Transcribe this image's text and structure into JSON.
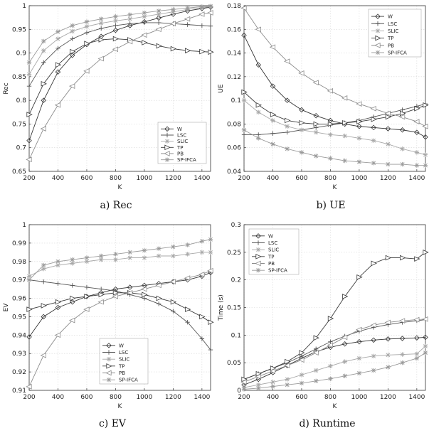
{
  "figure": {
    "series_names": [
      "W",
      "LSC",
      "SLIC",
      "TP",
      "PB",
      "SP-IFCA"
    ],
    "series_colors": [
      "#333333",
      "#555555",
      "#a8a8a8",
      "#3a3a3a",
      "#8c8c8c",
      "#9a9a9a"
    ],
    "series_markers": [
      "diamond",
      "plus",
      "star",
      "tri-right",
      "tri-left",
      "star"
    ]
  },
  "chart_data": [
    {
      "id": "rec",
      "type": "line",
      "caption": "a) Rec",
      "xlabel": "K",
      "ylabel": "Rec",
      "xlim": [
        200,
        1460
      ],
      "ylim": [
        0.65,
        1.0
      ],
      "xticks": [
        200,
        400,
        600,
        800,
        1000,
        1200,
        1400
      ],
      "xtick_labels": [
        "200",
        "400",
        "600",
        "800",
        "1000",
        "1200",
        "1400"
      ],
      "yticks": [
        0.65,
        0.7,
        0.75,
        0.8,
        0.85,
        0.9,
        0.95,
        1.0
      ],
      "ytick_labels": [
        "0.65",
        "0.7",
        "0.75",
        "0.8",
        "0.85",
        "0.9",
        "0.95",
        "1"
      ],
      "legend": "bottom-right",
      "x": [
        200,
        300,
        400,
        500,
        600,
        700,
        800,
        900,
        1000,
        1100,
        1200,
        1300,
        1400,
        1460
      ],
      "series": [
        {
          "name": "W",
          "values": [
            0.715,
            0.8,
            0.86,
            0.895,
            0.918,
            0.935,
            0.948,
            0.958,
            0.966,
            0.974,
            0.982,
            0.989,
            0.994,
            0.997
          ]
        },
        {
          "name": "LSC",
          "values": [
            0.83,
            0.88,
            0.91,
            0.93,
            0.943,
            0.952,
            0.958,
            0.962,
            0.964,
            0.964,
            0.962,
            0.96,
            0.958,
            0.957
          ]
        },
        {
          "name": "SLIC",
          "values": [
            0.855,
            0.905,
            0.93,
            0.946,
            0.956,
            0.963,
            0.968,
            0.972,
            0.977,
            0.982,
            0.987,
            0.992,
            0.996,
            0.998
          ]
        },
        {
          "name": "TP",
          "values": [
            0.77,
            0.835,
            0.875,
            0.903,
            0.92,
            0.928,
            0.93,
            0.928,
            0.922,
            0.915,
            0.909,
            0.905,
            0.903,
            0.902
          ]
        },
        {
          "name": "PB",
          "values": [
            0.675,
            0.74,
            0.79,
            0.83,
            0.862,
            0.888,
            0.908,
            0.924,
            0.938,
            0.95,
            0.962,
            0.972,
            0.982,
            0.985
          ]
        },
        {
          "name": "SP-IFCA",
          "values": [
            0.88,
            0.925,
            0.945,
            0.958,
            0.966,
            0.972,
            0.977,
            0.981,
            0.985,
            0.989,
            0.992,
            0.995,
            0.998,
            0.999
          ]
        }
      ]
    },
    {
      "id": "ue",
      "type": "line",
      "caption": "b) UE",
      "xlabel": "K",
      "ylabel": "UE",
      "xlim": [
        200,
        1460
      ],
      "ylim": [
        0.04,
        0.18
      ],
      "xticks": [
        200,
        400,
        600,
        800,
        1000,
        1200,
        1400
      ],
      "xtick_labels": [
        "200",
        "400",
        "600",
        "800",
        "1000",
        "1200",
        "1400"
      ],
      "yticks": [
        0.04,
        0.06,
        0.08,
        0.1,
        0.12,
        0.14,
        0.16,
        0.18
      ],
      "ytick_labels": [
        "0.04",
        "0.06",
        "0.08",
        "0.1",
        "0.12",
        "0.14",
        "0.16",
        "0.18"
      ],
      "legend": "top-right",
      "x": [
        200,
        300,
        400,
        500,
        600,
        700,
        800,
        900,
        1000,
        1100,
        1200,
        1300,
        1400,
        1460
      ],
      "series": [
        {
          "name": "W",
          "values": [
            0.155,
            0.13,
            0.112,
            0.1,
            0.092,
            0.087,
            0.083,
            0.08,
            0.078,
            0.077,
            0.076,
            0.075,
            0.073,
            0.069
          ]
        },
        {
          "name": "LSC",
          "values": [
            0.071,
            0.071,
            0.072,
            0.073,
            0.075,
            0.077,
            0.079,
            0.081,
            0.083,
            0.086,
            0.089,
            0.092,
            0.095,
            0.097
          ]
        },
        {
          "name": "SLIC",
          "values": [
            0.1,
            0.09,
            0.083,
            0.078,
            0.075,
            0.073,
            0.071,
            0.07,
            0.068,
            0.066,
            0.063,
            0.059,
            0.056,
            0.054
          ]
        },
        {
          "name": "TP",
          "values": [
            0.107,
            0.096,
            0.088,
            0.083,
            0.081,
            0.08,
            0.08,
            0.081,
            0.082,
            0.084,
            0.086,
            0.089,
            0.093,
            0.096
          ]
        },
        {
          "name": "PB",
          "values": [
            0.178,
            0.16,
            0.145,
            0.133,
            0.123,
            0.115,
            0.108,
            0.102,
            0.097,
            0.093,
            0.089,
            0.086,
            0.082,
            0.078
          ]
        },
        {
          "name": "SP-IFCA",
          "values": [
            0.075,
            0.068,
            0.063,
            0.059,
            0.056,
            0.053,
            0.051,
            0.049,
            0.048,
            0.047,
            0.046,
            0.046,
            0.045,
            0.045
          ]
        }
      ]
    },
    {
      "id": "ev",
      "type": "line",
      "caption": "c) EV",
      "xlabel": "K",
      "ylabel": "EV",
      "xlim": [
        200,
        1460
      ],
      "ylim": [
        0.91,
        1.0
      ],
      "xticks": [
        200,
        400,
        600,
        800,
        1000,
        1200,
        1400
      ],
      "xtick_labels": [
        "200",
        "400",
        "600",
        "800",
        "1000",
        "1200",
        "1400"
      ],
      "yticks": [
        0.91,
        0.92,
        0.93,
        0.94,
        0.95,
        0.96,
        0.97,
        0.98,
        0.99,
        1.0
      ],
      "ytick_labels": [
        "0.91",
        "0.92",
        "0.93",
        "0.94",
        "0.95",
        "0.96",
        "0.97",
        "0.98",
        "0.99",
        "1"
      ],
      "legend": "bottom-center",
      "x": [
        200,
        300,
        400,
        500,
        600,
        700,
        800,
        900,
        1000,
        1100,
        1200,
        1300,
        1400,
        1460
      ],
      "series": [
        {
          "name": "W",
          "values": [
            0.939,
            0.95,
            0.955,
            0.958,
            0.961,
            0.963,
            0.965,
            0.966,
            0.967,
            0.968,
            0.969,
            0.97,
            0.972,
            0.974
          ]
        },
        {
          "name": "LSC",
          "values": [
            0.97,
            0.969,
            0.968,
            0.967,
            0.966,
            0.965,
            0.964,
            0.962,
            0.96,
            0.957,
            0.953,
            0.947,
            0.938,
            0.932
          ]
        },
        {
          "name": "SLIC",
          "values": [
            0.972,
            0.976,
            0.978,
            0.979,
            0.98,
            0.981,
            0.981,
            0.982,
            0.982,
            0.983,
            0.983,
            0.984,
            0.985,
            0.985
          ]
        },
        {
          "name": "TP",
          "values": [
            0.954,
            0.956,
            0.958,
            0.96,
            0.961,
            0.962,
            0.963,
            0.963,
            0.962,
            0.96,
            0.958,
            0.954,
            0.95,
            0.947
          ]
        },
        {
          "name": "PB",
          "values": [
            0.912,
            0.929,
            0.94,
            0.948,
            0.954,
            0.958,
            0.961,
            0.963,
            0.965,
            0.967,
            0.969,
            0.971,
            0.973,
            0.975
          ]
        },
        {
          "name": "SP-IFCA",
          "values": [
            0.97,
            0.978,
            0.98,
            0.981,
            0.982,
            0.983,
            0.984,
            0.985,
            0.986,
            0.987,
            0.988,
            0.989,
            0.991,
            0.992
          ]
        }
      ]
    },
    {
      "id": "runtime",
      "type": "line",
      "caption": "d) Runtime",
      "xlabel": "K",
      "ylabel": "Time (s)",
      "xlim": [
        200,
        1460
      ],
      "ylim": [
        0.0,
        0.3
      ],
      "xticks": [
        200,
        400,
        600,
        800,
        1000,
        1200,
        1400
      ],
      "xtick_labels": [
        "200",
        "400",
        "600",
        "800",
        "1000",
        "1200",
        "1400"
      ],
      "yticks": [
        0.0,
        0.05,
        0.1,
        0.15,
        0.2,
        0.25,
        0.3
      ],
      "ytick_labels": [
        "0",
        "0.05",
        "0.1",
        "0.15",
        "0.2",
        "0.25",
        "0.3"
      ],
      "legend": "top-left",
      "x": [
        200,
        300,
        400,
        500,
        600,
        700,
        800,
        900,
        1000,
        1100,
        1200,
        1300,
        1400,
        1460
      ],
      "series": [
        {
          "name": "W",
          "values": [
            0.01,
            0.02,
            0.032,
            0.045,
            0.058,
            0.07,
            0.078,
            0.084,
            0.088,
            0.091,
            0.093,
            0.094,
            0.095,
            0.096
          ]
        },
        {
          "name": "LSC",
          "values": [
            0.02,
            0.03,
            0.04,
            0.05,
            0.062,
            0.075,
            0.088,
            0.098,
            0.107,
            0.114,
            0.119,
            0.123,
            0.126,
            0.128
          ]
        },
        {
          "name": "SLIC",
          "values": [
            0.005,
            0.01,
            0.015,
            0.02,
            0.028,
            0.036,
            0.044,
            0.052,
            0.058,
            0.062,
            0.064,
            0.065,
            0.066,
            0.08
          ]
        },
        {
          "name": "TP",
          "values": [
            0.02,
            0.03,
            0.04,
            0.052,
            0.068,
            0.095,
            0.13,
            0.17,
            0.205,
            0.23,
            0.24,
            0.24,
            0.238,
            0.25
          ]
        },
        {
          "name": "PB",
          "values": [
            0.015,
            0.025,
            0.035,
            0.045,
            0.055,
            0.068,
            0.082,
            0.096,
            0.11,
            0.118,
            0.123,
            0.126,
            0.128,
            0.129
          ]
        },
        {
          "name": "SP-IFCA",
          "values": [
            0.002,
            0.004,
            0.007,
            0.01,
            0.013,
            0.017,
            0.021,
            0.026,
            0.031,
            0.036,
            0.042,
            0.05,
            0.058,
            0.068
          ]
        }
      ]
    }
  ]
}
